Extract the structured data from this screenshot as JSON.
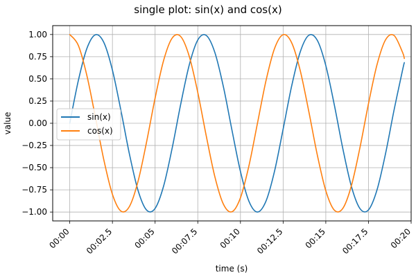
{
  "chart_data": {
    "type": "line",
    "title": "single plot: sin(x) and cos(x)",
    "xlabel": "time (s)",
    "ylabel": "value",
    "x_unit": "seconds",
    "xlim": [
      -1,
      20
    ],
    "ylim": [
      -1.1,
      1.1
    ],
    "x_ticks": [
      0,
      2.5,
      5,
      7.5,
      10,
      12.5,
      15,
      17.5,
      20
    ],
    "x_tick_labels": [
      "00:00",
      "00:02.5",
      "00:05",
      "00:07.5",
      "00:10",
      "00:12.5",
      "00:15",
      "00:17.5",
      "00:20"
    ],
    "y_ticks": [
      1.0,
      0.75,
      0.5,
      0.25,
      0.0,
      -0.25,
      -0.5,
      -0.75,
      -1.0
    ],
    "y_tick_labels": [
      "1.00",
      "0.75",
      "0.50",
      "0.25",
      "0.00",
      "−0.25",
      "−0.50",
      "−0.75",
      "−1.00"
    ],
    "grid": true,
    "legend_position": "center-left",
    "x": [
      0.0,
      0.5,
      1.0,
      1.5,
      2.0,
      2.5,
      3.0,
      3.5,
      4.0,
      4.5,
      5.0,
      5.5,
      6.0,
      6.5,
      7.0,
      7.5,
      8.0,
      8.5,
      9.0,
      9.5,
      10.0,
      10.5,
      11.0,
      11.5,
      12.0,
      12.5,
      13.0,
      13.5,
      14.0,
      14.5,
      15.0,
      15.5,
      16.0,
      16.5,
      17.0,
      17.5,
      18.0,
      18.5,
      19.0,
      19.5,
      19.6
    ],
    "series": [
      {
        "name": "sin(x)",
        "color": "#1f77b4",
        "values": [
          0.0,
          0.479,
          0.841,
          0.997,
          0.909,
          0.598,
          0.141,
          -0.351,
          -0.757,
          -0.978,
          -0.959,
          -0.706,
          -0.279,
          0.215,
          0.657,
          0.938,
          0.989,
          0.798,
          0.412,
          -0.075,
          -0.544,
          -0.88,
          -1.0,
          -0.875,
          -0.537,
          -0.066,
          0.42,
          0.803,
          0.991,
          0.935,
          0.65,
          0.206,
          -0.288,
          -0.712,
          -0.961,
          -0.976,
          -0.751,
          -0.342,
          0.15,
          0.602,
          0.683
        ]
      },
      {
        "name": "cos(x)",
        "color": "#ff7f0e",
        "values": [
          1.0,
          0.878,
          0.54,
          0.071,
          -0.416,
          -0.801,
          -0.99,
          -0.936,
          -0.654,
          -0.211,
          0.284,
          0.709,
          0.96,
          0.977,
          0.754,
          0.347,
          -0.146,
          -0.602,
          -0.911,
          -0.997,
          -0.839,
          -0.476,
          0.004,
          0.483,
          0.844,
          0.998,
          0.907,
          0.595,
          0.137,
          -0.355,
          -0.76,
          -0.979,
          -0.958,
          -0.703,
          -0.275,
          0.22,
          0.66,
          0.94,
          0.989,
          0.797,
          0.73
        ]
      }
    ]
  }
}
